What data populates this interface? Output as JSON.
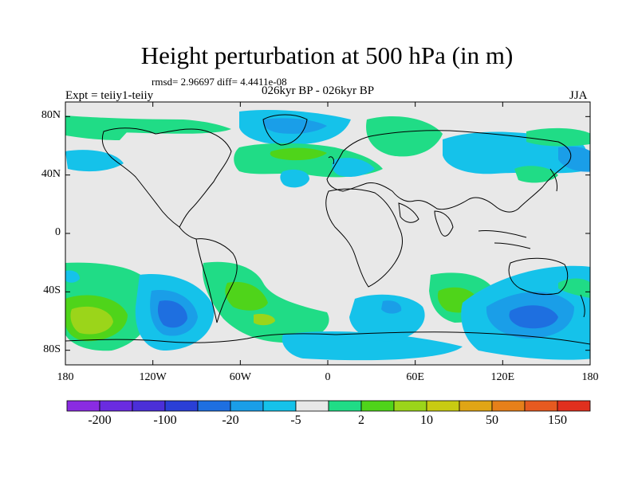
{
  "title": "Height perturbation at 500 hPa (in m)",
  "stats_line": "rmsd= 2.96697 diff= 4.4411e-08",
  "experiment_label": "Expt = teiiy1-teiiy",
  "period_label": "026kyr BP - 026kyr BP",
  "season_label": "JJA",
  "map": {
    "projection": "cylindrical-equidistant",
    "lon_range": [
      -180,
      180
    ],
    "lat_range": [
      -90,
      90
    ],
    "background_color": "#e8e8e8",
    "coastline_color": "#000000"
  },
  "axes": {
    "lat_ticks": [
      {
        "value": 80,
        "label": "80N"
      },
      {
        "value": 40,
        "label": "40N"
      },
      {
        "value": 0,
        "label": "0"
      },
      {
        "value": -40,
        "label": "40S"
      },
      {
        "value": -80,
        "label": "80S"
      }
    ],
    "lon_ticks": [
      {
        "value": -180,
        "label": "180"
      },
      {
        "value": -120,
        "label": "120W"
      },
      {
        "value": -60,
        "label": "60W"
      },
      {
        "value": 0,
        "label": "0"
      },
      {
        "value": 60,
        "label": "60E"
      },
      {
        "value": 120,
        "label": "120E"
      },
      {
        "value": 180,
        "label": "180"
      }
    ]
  },
  "colorbar": {
    "colors": [
      "#8a2be2",
      "#6a2ce0",
      "#4b2fd8",
      "#2a3fd6",
      "#1e6fe0",
      "#1a9ee8",
      "#15c2ea",
      "#e8e8e8",
      "#20dc86",
      "#4fd41a",
      "#9bd51a",
      "#c8cb12",
      "#e0a515",
      "#e6801a",
      "#e65a20",
      "#e0301e"
    ],
    "labels": [
      {
        "boundary": 1,
        "text": "-200"
      },
      {
        "boundary": 3,
        "text": "-100"
      },
      {
        "boundary": 5,
        "text": "-20"
      },
      {
        "boundary": 7,
        "text": "-5"
      },
      {
        "boundary": 9,
        "text": "2"
      },
      {
        "boundary": 11,
        "text": "10"
      },
      {
        "boundary": 13,
        "text": "50"
      },
      {
        "boundary": 15,
        "text": "150"
      }
    ]
  }
}
